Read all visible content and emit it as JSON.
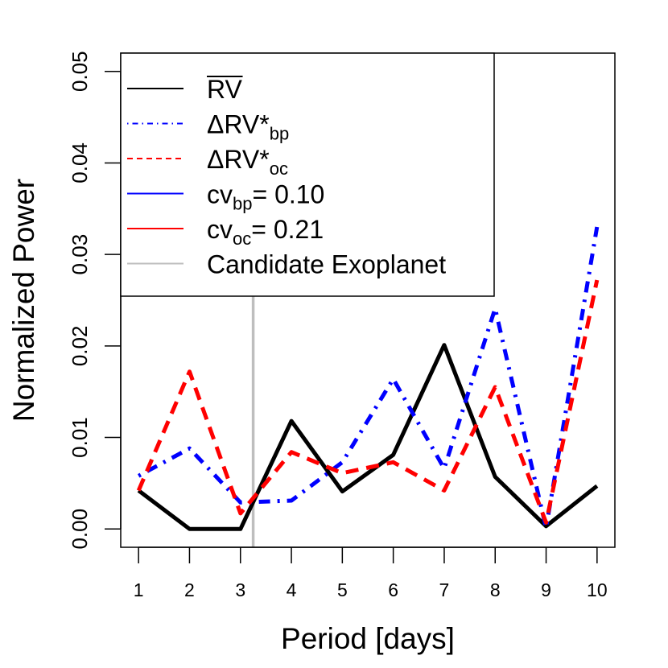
{
  "chart_data": {
    "type": "line",
    "xlabel": "Period [days]",
    "ylabel": "Normalized Power",
    "x": [
      1,
      2,
      3,
      4,
      5,
      6,
      7,
      8,
      9,
      10
    ],
    "xlim": [
      0.65,
      10.35
    ],
    "ylim": [
      -0.002,
      0.052
    ],
    "xticks": [
      1,
      2,
      3,
      4,
      5,
      6,
      7,
      8,
      9,
      10
    ],
    "yticks": [
      0.0,
      0.01,
      0.02,
      0.03,
      0.04,
      0.05
    ],
    "ytick_labels": [
      "0.00",
      "0.01",
      "0.02",
      "0.03",
      "0.04",
      "0.05"
    ],
    "grid": false,
    "legend_position": "top-left",
    "candidate_exoplanet_period": 3.25,
    "series": [
      {
        "key": "rv-mean",
        "name": "RV",
        "name_parts": [
          {
            "text": "RV",
            "style": "overline"
          }
        ],
        "color": "#000000",
        "dash": "solid",
        "values": [
          0.0042,
          0.0,
          0.0,
          0.0118,
          0.0041,
          0.0081,
          0.0201,
          0.0057,
          0.0003,
          0.0047
        ]
      },
      {
        "key": "delta-rv-bp",
        "name": "ΔRV*bp",
        "name_parts": [
          {
            "text": "ΔRV*",
            "style": "normal"
          },
          {
            "text": "bp",
            "style": "sub"
          }
        ],
        "color": "#0000ff",
        "dash": "dotdash",
        "values": [
          0.0058,
          0.0088,
          0.0029,
          0.0031,
          0.0073,
          0.0164,
          0.0066,
          0.0241,
          0.0001,
          0.033
        ]
      },
      {
        "key": "delta-rv-oc",
        "name": "ΔRV*oc",
        "name_parts": [
          {
            "text": "ΔRV*",
            "style": "normal"
          },
          {
            "text": "oc",
            "style": "sub"
          }
        ],
        "color": "#ff0000",
        "dash": "dashed",
        "values": [
          0.0042,
          0.0172,
          0.0017,
          0.0084,
          0.0061,
          0.0073,
          0.0042,
          0.0155,
          0.0007,
          0.0272
        ]
      }
    ],
    "legend": [
      {
        "key": "rv-mean",
        "parts": [
          {
            "text": "RV",
            "style": "overline"
          }
        ],
        "color": "#000000",
        "dash": "solid"
      },
      {
        "key": "delta-rv-bp",
        "parts": [
          {
            "text": "ΔRV*",
            "style": "normal"
          },
          {
            "text": "bp",
            "style": "sub"
          }
        ],
        "color": "#0000ff",
        "dash": "dotdash"
      },
      {
        "key": "delta-rv-oc",
        "parts": [
          {
            "text": "ΔRV*",
            "style": "normal"
          },
          {
            "text": "oc",
            "style": "sub"
          }
        ],
        "color": "#ff0000",
        "dash": "dashed"
      },
      {
        "key": "cv-bp",
        "parts": [
          {
            "text": "cv",
            "style": "normal"
          },
          {
            "text": "bp",
            "style": "sub"
          },
          {
            "text": "= 0.10",
            "style": "normal"
          }
        ],
        "color": "#0000ff",
        "dash": "solid"
      },
      {
        "key": "cv-oc",
        "parts": [
          {
            "text": "cv",
            "style": "normal"
          },
          {
            "text": "oc",
            "style": "sub"
          },
          {
            "text": "= 0.21",
            "style": "normal"
          }
        ],
        "color": "#ff0000",
        "dash": "solid"
      },
      {
        "key": "candidate-exoplanet",
        "parts": [
          {
            "text": "Candidate Exoplanet",
            "style": "normal"
          }
        ],
        "color": "#bebebe",
        "dash": "solid"
      }
    ]
  }
}
